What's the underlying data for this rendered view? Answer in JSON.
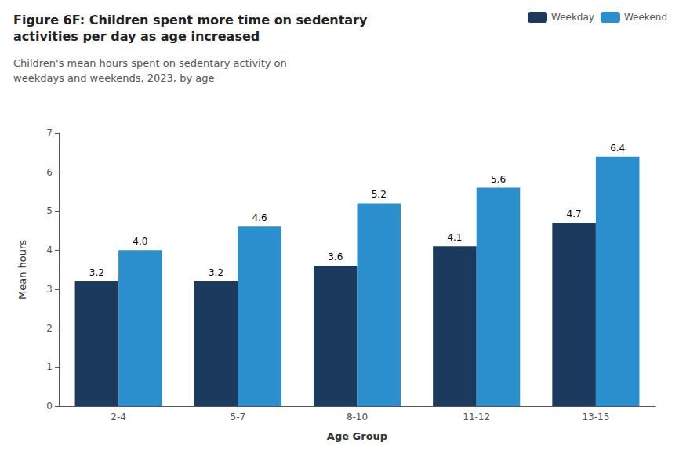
{
  "chart_data": {
    "type": "bar",
    "title": "Figure 6F: Children spent more time on sedentary\nactivities per day as age increased",
    "subtitle": "Children's mean hours spent on sedentary activity on\nweekdays and weekends, 2023, by age",
    "xlabel": "Age Group",
    "ylabel": "Mean hours",
    "categories": [
      "2-4",
      "5-7",
      "8-10",
      "11-12",
      "13-15"
    ],
    "series": [
      {
        "name": "Weekday",
        "color": "#1c3a5e",
        "values": [
          3.2,
          3.2,
          3.6,
          4.1,
          4.7
        ]
      },
      {
        "name": "Weekend",
        "color": "#2b8fce",
        "values": [
          4.0,
          4.6,
          5.2,
          5.6,
          6.4
        ],
        "value_labels": [
          "4.0",
          "4.6",
          "5.2",
          "5.6",
          "6.4"
        ]
      }
    ],
    "ylim": [
      0,
      7
    ],
    "yticks": [
      0,
      1,
      2,
      3,
      4,
      5,
      6,
      7
    ],
    "grid": false,
    "legend": "upper right",
    "data_labels": true
  }
}
